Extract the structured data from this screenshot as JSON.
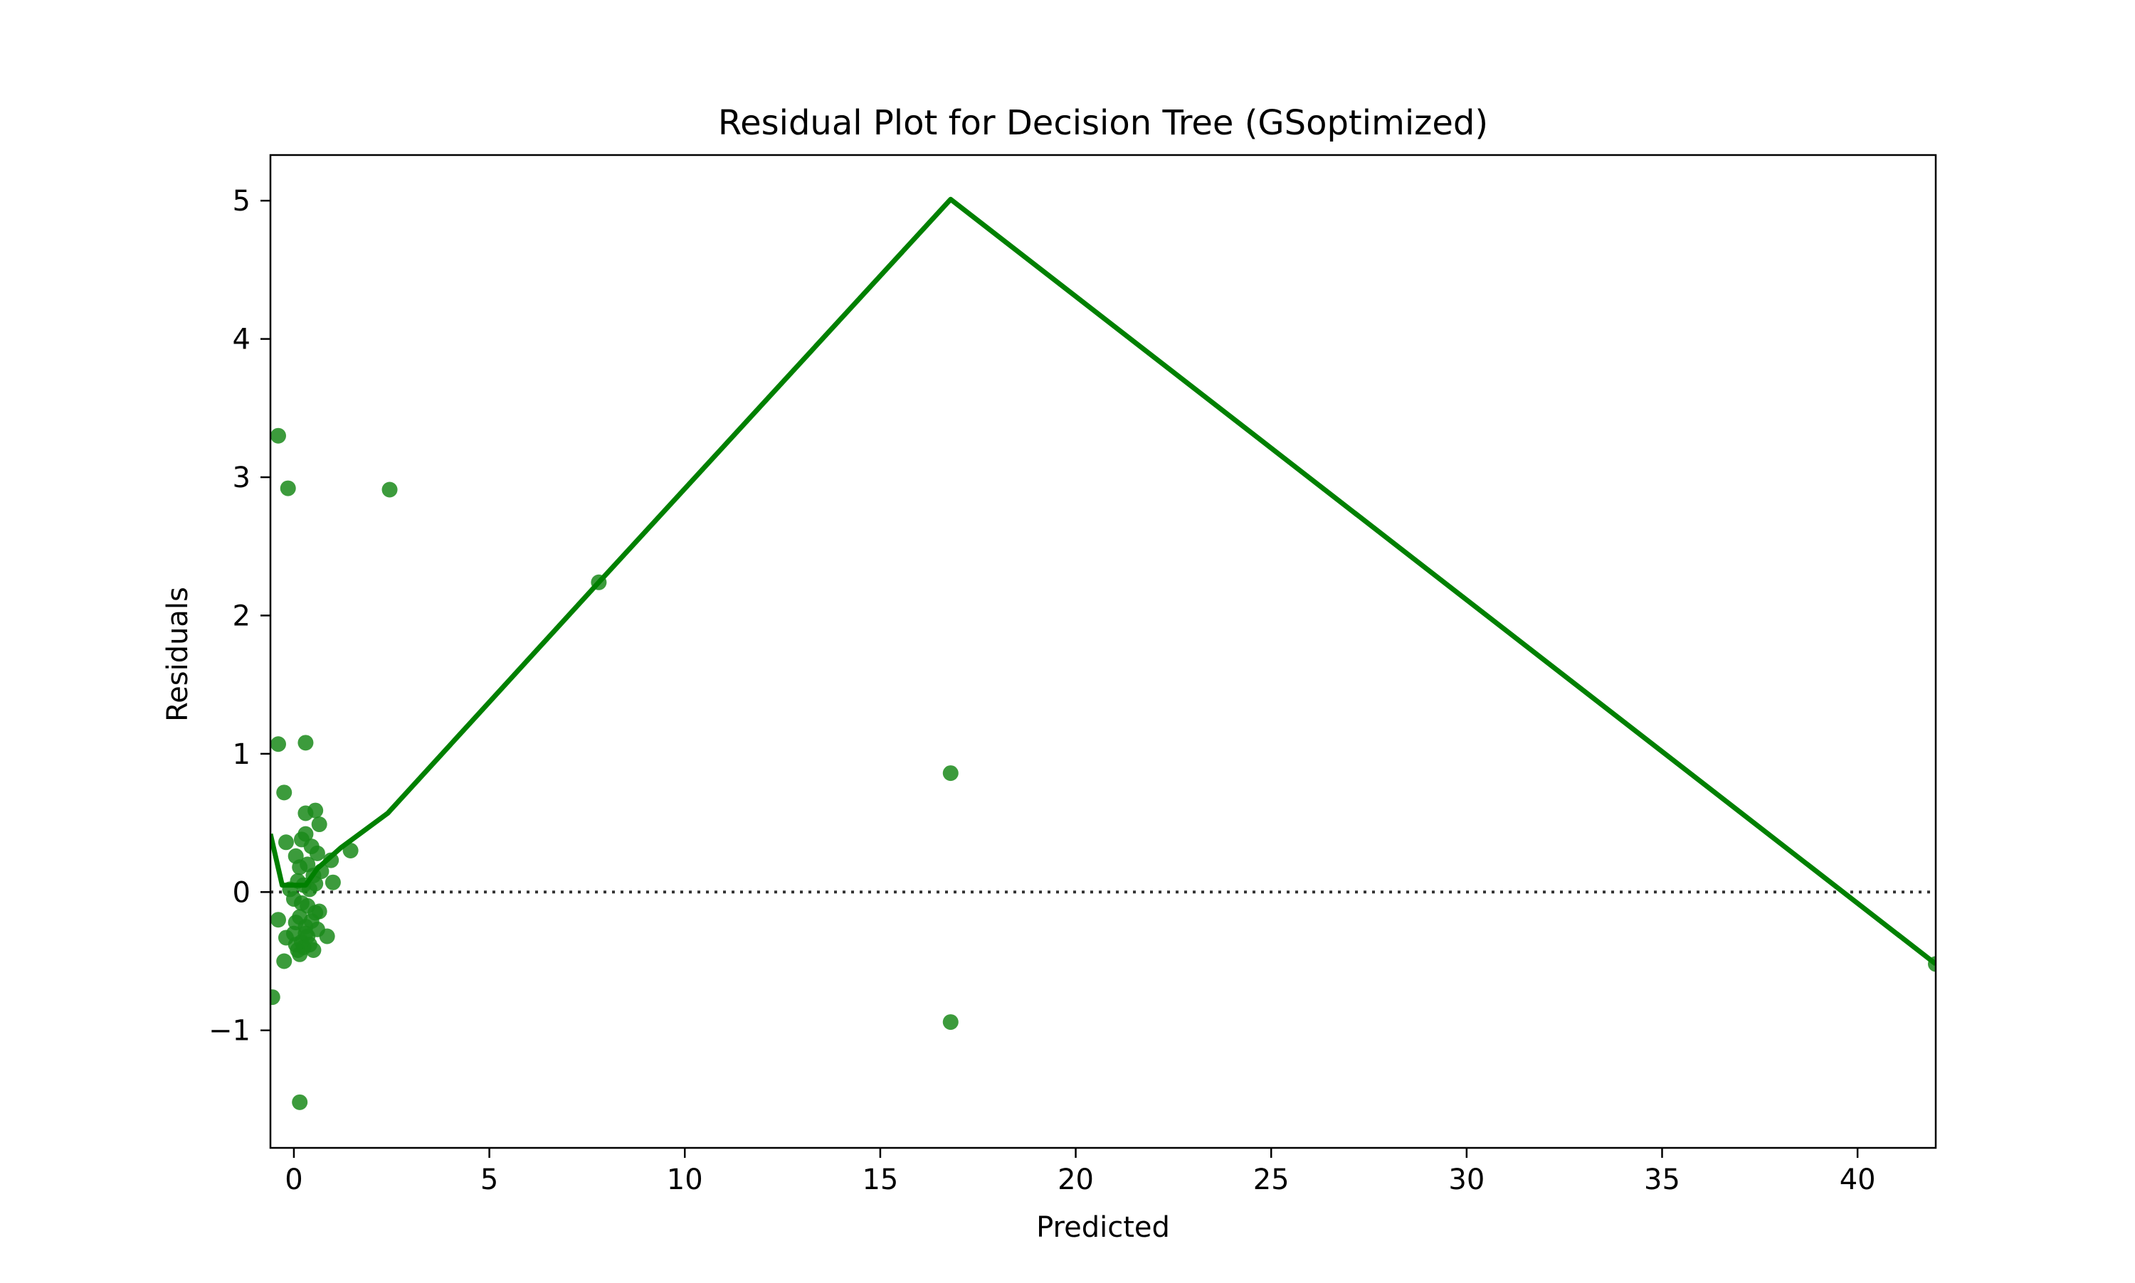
{
  "chart_data": {
    "type": "scatter",
    "title": "Residual Plot for Decision Tree (GSoptimized)",
    "xlabel": "Predicted",
    "ylabel": "Residuals",
    "xlim": [
      -0.6,
      42
    ],
    "ylim": [
      -1.85,
      5.33
    ],
    "grid": false,
    "x_ticks": [
      {
        "value": 0,
        "label": "0"
      },
      {
        "value": 5,
        "label": "5"
      },
      {
        "value": 10,
        "label": "10"
      },
      {
        "value": 15,
        "label": "15"
      },
      {
        "value": 20,
        "label": "20"
      },
      {
        "value": 25,
        "label": "25"
      },
      {
        "value": 30,
        "label": "30"
      },
      {
        "value": 35,
        "label": "35"
      },
      {
        "value": 40,
        "label": "40"
      }
    ],
    "y_ticks": [
      {
        "value": -1,
        "label": "−1"
      },
      {
        "value": 0,
        "label": "0"
      },
      {
        "value": 1,
        "label": "1"
      },
      {
        "value": 2,
        "label": "2"
      },
      {
        "value": 3,
        "label": "3"
      },
      {
        "value": 4,
        "label": "4"
      },
      {
        "value": 5,
        "label": "5"
      }
    ],
    "reference_line": {
      "y": 0,
      "style": "dotted",
      "color": "#333333"
    },
    "fit_line": {
      "color": "#008000",
      "x": [
        -0.6,
        -0.3,
        0.3,
        0.6,
        1.2,
        2.4,
        7.8,
        16.8,
        42.0
      ],
      "y": [
        0.42,
        0.05,
        0.05,
        0.17,
        0.32,
        0.57,
        2.24,
        5.01,
        -0.52
      ]
    },
    "points_color": "#1a8a1a",
    "points": [
      [
        -0.4,
        3.3
      ],
      [
        -0.15,
        2.92
      ],
      [
        2.45,
        2.91
      ],
      [
        7.8,
        2.24
      ],
      [
        -0.4,
        1.07
      ],
      [
        0.3,
        1.08
      ],
      [
        -0.25,
        0.72
      ],
      [
        16.8,
        0.86
      ],
      [
        0.3,
        0.57
      ],
      [
        0.55,
        0.59
      ],
      [
        0.65,
        0.49
      ],
      [
        -0.2,
        0.36
      ],
      [
        0.2,
        0.38
      ],
      [
        0.3,
        0.42
      ],
      [
        0.45,
        0.33
      ],
      [
        0.6,
        0.28
      ],
      [
        0.95,
        0.23
      ],
      [
        1.45,
        0.3
      ],
      [
        0.05,
        0.26
      ],
      [
        0.15,
        0.18
      ],
      [
        0.35,
        0.2
      ],
      [
        0.5,
        0.12
      ],
      [
        0.7,
        0.15
      ],
      [
        1.0,
        0.07
      ],
      [
        0.1,
        0.08
      ],
      [
        0.25,
        0.05
      ],
      [
        0.4,
        0.02
      ],
      [
        0.55,
        0.06
      ],
      [
        -0.1,
        0.02
      ],
      [
        0.0,
        -0.05
      ],
      [
        0.2,
        -0.08
      ],
      [
        0.35,
        -0.1
      ],
      [
        0.55,
        -0.15
      ],
      [
        0.65,
        -0.14
      ],
      [
        -0.4,
        -0.2
      ],
      [
        0.05,
        -0.22
      ],
      [
        0.15,
        -0.18
      ],
      [
        0.3,
        -0.25
      ],
      [
        0.45,
        -0.21
      ],
      [
        0.6,
        -0.27
      ],
      [
        -0.2,
        -0.33
      ],
      [
        0.0,
        -0.3
      ],
      [
        0.2,
        -0.36
      ],
      [
        0.35,
        -0.32
      ],
      [
        0.85,
        -0.32
      ],
      [
        0.1,
        -0.42
      ],
      [
        0.25,
        -0.4
      ],
      [
        0.5,
        -0.42
      ],
      [
        0.15,
        -0.45
      ],
      [
        -0.25,
        -0.5
      ],
      [
        0.05,
        -0.38
      ],
      [
        0.3,
        -0.3
      ],
      [
        0.4,
        -0.38
      ],
      [
        -0.55,
        -0.76
      ],
      [
        16.8,
        -0.94
      ],
      [
        0.15,
        -1.52
      ],
      [
        42.0,
        -0.52
      ]
    ]
  }
}
